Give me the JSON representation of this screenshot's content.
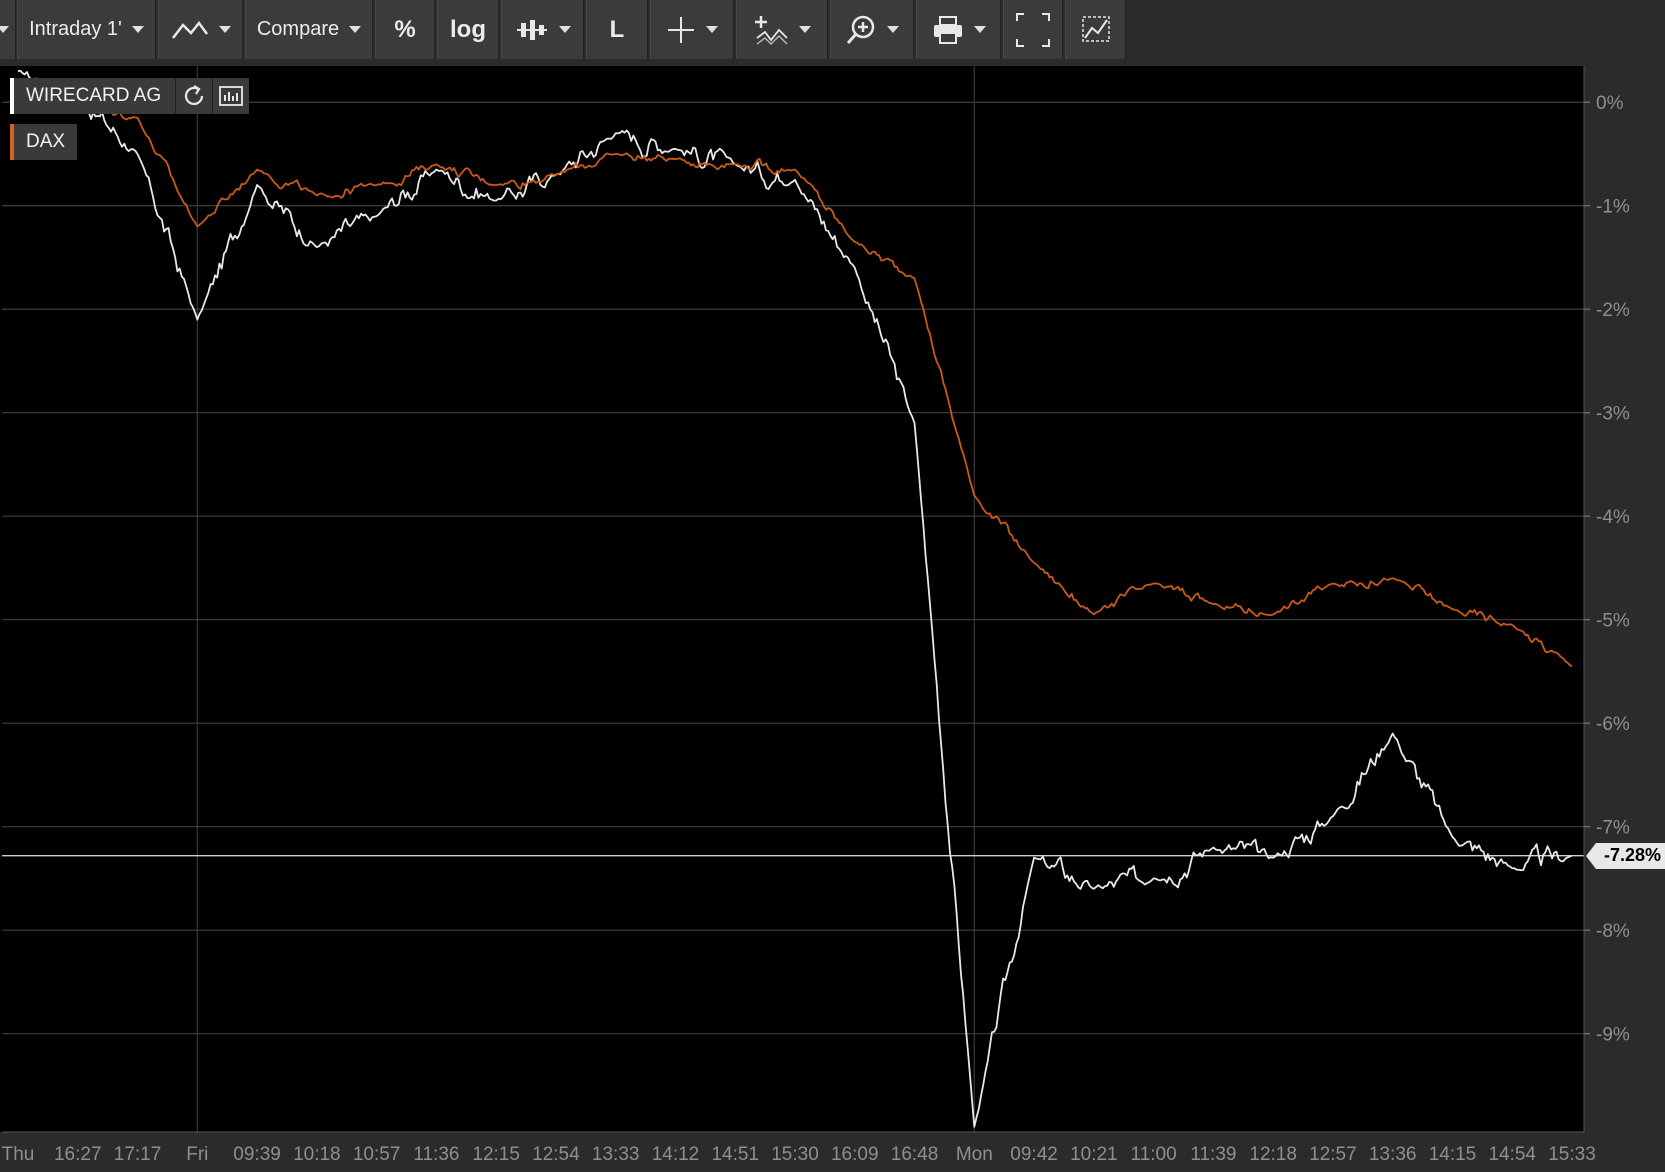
{
  "toolbar": {
    "interval_label": "Intraday 1'",
    "compare_label": "Compare",
    "percent_label": "%",
    "log_label": "log",
    "line_label": "L"
  },
  "legend": {
    "items": [
      {
        "name": "WIRECARD AG",
        "color": "#ffffff"
      },
      {
        "name": "DAX",
        "color": "#d4611a"
      }
    ]
  },
  "last_value_label": "-7.28%",
  "colors": {
    "background": "#000000",
    "wirecard": "#e8e8e8",
    "dax": "#c95a17"
  },
  "chart_data": {
    "type": "line",
    "ylim": [
      -9.95,
      0.35
    ],
    "y_ticks": [
      {
        "value": 0,
        "label": "0%"
      },
      {
        "value": -1,
        "label": "-1%"
      },
      {
        "value": -2,
        "label": "-2%"
      },
      {
        "value": -3,
        "label": "-3%"
      },
      {
        "value": -4,
        "label": "-4%"
      },
      {
        "value": -5,
        "label": "-5%"
      },
      {
        "value": -6,
        "label": "-6%"
      },
      {
        "value": -7,
        "label": "-7%"
      },
      {
        "value": -8,
        "label": "-8%"
      },
      {
        "value": -9,
        "label": "-9%"
      }
    ],
    "x_ticks": [
      "Thu",
      "16:27",
      "17:17",
      "Fri",
      "09:39",
      "10:18",
      "10:57",
      "11:36",
      "12:15",
      "12:54",
      "13:33",
      "14:12",
      "14:51",
      "15:30",
      "16:09",
      "16:48",
      "Mon",
      "09:42",
      "10:21",
      "11:00",
      "11:39",
      "12:18",
      "12:57",
      "13:36",
      "14:15",
      "14:54",
      "15:33"
    ],
    "session_breaks": [
      "Fri",
      "Mon"
    ],
    "last_value": -7.28,
    "series": [
      {
        "name": "WIRECARD AG",
        "color": "#e8e8e8",
        "points": [
          [
            "Thu",
            0.3
          ],
          [
            "16:27",
            0.05
          ],
          [
            "17:17",
            -0.5
          ],
          [
            "Fri",
            -2.1
          ],
          [
            "09:39",
            -0.8
          ],
          [
            "10:18",
            -1.4
          ],
          [
            "10:57",
            -1.1
          ],
          [
            "11:36",
            -0.65
          ],
          [
            "12:15",
            -0.95
          ],
          [
            "12:54",
            -0.7
          ],
          [
            "13:33",
            -0.3
          ],
          [
            "14:12",
            -0.45
          ],
          [
            "14:51",
            -0.6
          ],
          [
            "15:30",
            -0.75
          ],
          [
            "16:09",
            -1.6
          ],
          [
            "16:48",
            -3.1
          ],
          [
            "Mon",
            -9.9
          ],
          [
            "09:42",
            -7.3
          ],
          [
            "10:21",
            -7.6
          ],
          [
            "11:00",
            -7.5
          ],
          [
            "11:39",
            -7.2
          ],
          [
            "12:18",
            -7.3
          ],
          [
            "12:57",
            -6.9
          ],
          [
            "13:36",
            -6.1
          ],
          [
            "14:15",
            -7.1
          ],
          [
            "14:54",
            -7.4
          ],
          [
            "15:33",
            -7.28
          ]
        ]
      },
      {
        "name": "DAX",
        "color": "#c95a17",
        "points": [
          [
            "Thu",
            0.05
          ],
          [
            "16:27",
            -0.05
          ],
          [
            "17:17",
            -0.15
          ],
          [
            "Fri",
            -1.2
          ],
          [
            "09:39",
            -0.65
          ],
          [
            "10:18",
            -0.9
          ],
          [
            "10:57",
            -0.8
          ],
          [
            "11:36",
            -0.6
          ],
          [
            "12:15",
            -0.8
          ],
          [
            "12:54",
            -0.7
          ],
          [
            "13:33",
            -0.5
          ],
          [
            "14:12",
            -0.55
          ],
          [
            "14:51",
            -0.6
          ],
          [
            "15:30",
            -0.65
          ],
          [
            "16:09",
            -1.35
          ],
          [
            "16:48",
            -1.7
          ],
          [
            "Mon",
            -3.8
          ],
          [
            "09:42",
            -4.45
          ],
          [
            "10:21",
            -4.95
          ],
          [
            "11:00",
            -4.65
          ],
          [
            "11:39",
            -4.85
          ],
          [
            "12:18",
            -4.95
          ],
          [
            "12:57",
            -4.65
          ],
          [
            "13:36",
            -4.6
          ],
          [
            "14:15",
            -4.9
          ],
          [
            "14:54",
            -5.05
          ],
          [
            "15:33",
            -5.45
          ]
        ]
      }
    ]
  }
}
